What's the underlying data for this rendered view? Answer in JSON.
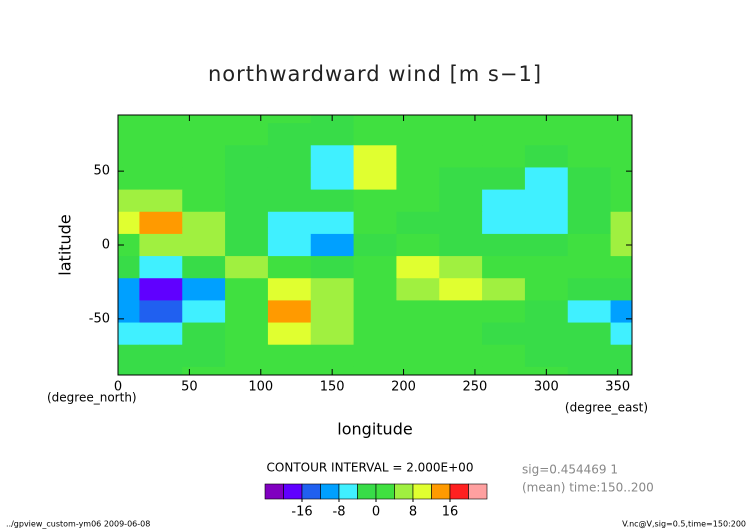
{
  "chart_data": {
    "type": "contour",
    "title": "northwardward wind [m s−1]",
    "x_label": "longitude",
    "y_label": "latitude",
    "x_unit": "(degree_east)",
    "y_unit": "(degree_north)",
    "contour_note": "CONTOUR INTERVAL = 2.000E+00",
    "info": [
      "sig=0.454469 1",
      "(mean) time:150..200"
    ],
    "footer_left": "../gpview_custom-ym06  2009-06-08",
    "footer_right": "V.nc@V,sig=0.5,time=150:200",
    "xlim": [
      0,
      360
    ],
    "xticks": [
      0,
      50,
      100,
      150,
      200,
      250,
      300,
      350
    ],
    "ylim": [
      -88,
      88
    ],
    "yticks": [
      -50,
      0,
      50
    ],
    "x": [
      0,
      30,
      60,
      90,
      120,
      150,
      180,
      210,
      240,
      270,
      300,
      330,
      360
    ],
    "y": [
      90,
      75,
      60,
      45,
      30,
      15,
      0,
      -15,
      -30,
      -45,
      -60,
      -75,
      -90
    ],
    "z": [
      [
        1,
        1,
        1,
        0,
        0,
        -1,
        0,
        0,
        1,
        1,
        0,
        1,
        1
      ],
      [
        2,
        1,
        1,
        0,
        -1,
        -2,
        2,
        1,
        0,
        0,
        0,
        0,
        2
      ],
      [
        1,
        1,
        0,
        -1,
        -2,
        -6,
        9,
        2,
        0,
        0,
        -1,
        0,
        1
      ],
      [
        2,
        3,
        1,
        -1,
        -3,
        -5,
        8,
        2,
        -1,
        -3,
        -5,
        -2,
        1
      ],
      [
        5,
        7,
        3,
        -1,
        -4,
        -3,
        2,
        1,
        -2,
        -6,
        -7,
        -2,
        3
      ],
      [
        9,
        13,
        6,
        -2,
        -7,
        -6,
        0,
        -1,
        -3,
        -7,
        -6,
        -1,
        6
      ],
      [
        3,
        5,
        4,
        -1,
        -6,
        -9,
        -2,
        1,
        -1,
        -3,
        -3,
        0,
        6
      ],
      [
        -4,
        -6,
        -2,
        4,
        1,
        -1,
        3,
        8,
        7,
        3,
        0,
        0,
        3
      ],
      [
        -9,
        -18,
        -10,
        3,
        8,
        4,
        1,
        7,
        9,
        5,
        0,
        -2,
        -4
      ],
      [
        -9,
        -14,
        -6,
        2,
        13,
        7,
        2,
        2,
        3,
        1,
        -1,
        -6,
        -10
      ],
      [
        -6,
        -8,
        -3,
        1,
        8,
        5,
        1,
        0,
        0,
        -1,
        -2,
        -4,
        -8
      ],
      [
        -3,
        -4,
        -2,
        1,
        3,
        2,
        0,
        0,
        0,
        0,
        -1,
        -2,
        -4
      ],
      [
        -1,
        -1,
        0,
        0,
        1,
        1,
        0,
        0,
        0,
        0,
        0,
        -1,
        -1
      ]
    ],
    "colorbar": {
      "levels": [
        -20,
        -16,
        -12,
        -8,
        -4,
        0,
        4,
        8,
        12,
        16,
        20
      ],
      "colors": [
        "#8000c0",
        "#6000ff",
        "#2060f0",
        "#00a0ff",
        "#40f0ff",
        "#38dc48",
        "#40e040",
        "#a0f040",
        "#e0ff30",
        "#ff9a00",
        "#ff2020",
        "#ffa0a0"
      ],
      "ticks": [
        -16,
        -8,
        0,
        8,
        16
      ]
    }
  }
}
